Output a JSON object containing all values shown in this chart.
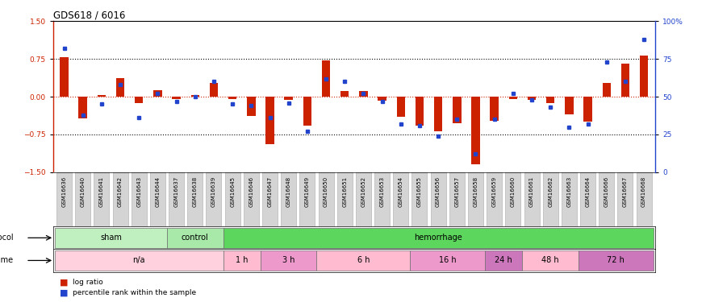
{
  "title": "GDS618 / 6016",
  "samples": [
    "GSM16636",
    "GSM16640",
    "GSM16641",
    "GSM16642",
    "GSM16643",
    "GSM16644",
    "GSM16637",
    "GSM16638",
    "GSM16639",
    "GSM16645",
    "GSM16646",
    "GSM16647",
    "GSM16648",
    "GSM16649",
    "GSM16650",
    "GSM16651",
    "GSM16652",
    "GSM16653",
    "GSM16654",
    "GSM16655",
    "GSM16656",
    "GSM16657",
    "GSM16658",
    "GSM16659",
    "GSM16660",
    "GSM16661",
    "GSM16662",
    "GSM16663",
    "GSM16664",
    "GSM16666",
    "GSM16667",
    "GSM16668"
  ],
  "log_ratio": [
    0.78,
    -0.43,
    0.04,
    0.37,
    -0.13,
    0.13,
    -0.04,
    0.04,
    0.28,
    -0.04,
    -0.38,
    -0.95,
    -0.07,
    -0.58,
    0.72,
    0.12,
    0.12,
    -0.08,
    -0.4,
    -0.58,
    -0.68,
    -0.52,
    -1.35,
    -0.48,
    -0.04,
    -0.06,
    -0.12,
    -0.35,
    -0.5,
    0.28,
    0.65,
    0.82
  ],
  "pct_rank": [
    82,
    38,
    45,
    58,
    36,
    52,
    47,
    50,
    60,
    45,
    44,
    36,
    46,
    27,
    62,
    60,
    52,
    47,
    32,
    31,
    24,
    35,
    12,
    35,
    52,
    48,
    43,
    30,
    32,
    73,
    60,
    88
  ],
  "protocol_groups": [
    {
      "label": "sham",
      "start": 0,
      "end": 5,
      "color": "#c0f0c0"
    },
    {
      "label": "control",
      "start": 6,
      "end": 8,
      "color": "#a8e8a8"
    },
    {
      "label": "hemorrhage",
      "start": 9,
      "end": 31,
      "color": "#5cd65c"
    }
  ],
  "time_groups": [
    {
      "label": "n/a",
      "start": 0,
      "end": 8,
      "color": "#ffd0dd"
    },
    {
      "label": "1 h",
      "start": 9,
      "end": 10,
      "color": "#ffbbd0"
    },
    {
      "label": "3 h",
      "start": 11,
      "end": 13,
      "color": "#ee99cc"
    },
    {
      "label": "6 h",
      "start": 14,
      "end": 18,
      "color": "#ffbbd0"
    },
    {
      "label": "16 h",
      "start": 19,
      "end": 22,
      "color": "#ee99cc"
    },
    {
      "label": "24 h",
      "start": 23,
      "end": 24,
      "color": "#cc77bb"
    },
    {
      "label": "48 h",
      "start": 25,
      "end": 27,
      "color": "#ffbbd0"
    },
    {
      "label": "72 h",
      "start": 28,
      "end": 31,
      "color": "#cc77bb"
    }
  ],
  "ylim": [
    -1.5,
    1.5
  ],
  "yticks_left": [
    -1.5,
    -0.75,
    0.0,
    0.75,
    1.5
  ],
  "yticks_right": [
    0,
    25,
    50,
    75,
    100
  ],
  "bar_color": "#cc2200",
  "dot_color": "#2244cc",
  "xtick_bg": "#d4d4d4"
}
